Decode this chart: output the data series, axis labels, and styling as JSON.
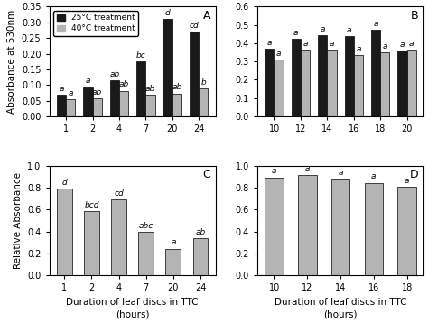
{
  "panel_A": {
    "categories": [
      1,
      2,
      4,
      7,
      20,
      24
    ],
    "black_values": [
      0.068,
      0.095,
      0.115,
      0.175,
      0.31,
      0.27
    ],
    "gray_values": [
      0.055,
      0.057,
      0.082,
      0.07,
      0.073,
      0.09
    ],
    "black_letters": [
      "a",
      "a",
      "ab",
      "bc",
      "d",
      "cd"
    ],
    "gray_letters": [
      "a",
      "ab",
      "ab",
      "ab",
      "ab",
      "b"
    ],
    "ylabel": "Absorbance at 530nm",
    "ylim": [
      0,
      0.35
    ],
    "yticks": [
      0.0,
      0.05,
      0.1,
      0.15,
      0.2,
      0.25,
      0.3,
      0.35
    ],
    "label": "A"
  },
  "panel_B": {
    "categories": [
      10,
      12,
      14,
      16,
      18,
      20
    ],
    "black_values": [
      0.37,
      0.425,
      0.445,
      0.44,
      0.475,
      0.36
    ],
    "gray_values": [
      0.31,
      0.365,
      0.365,
      0.335,
      0.35,
      0.365
    ],
    "black_letters": [
      "a",
      "a",
      "a",
      "a",
      "a",
      "a"
    ],
    "gray_letters": [
      "a",
      "a",
      "a",
      "a",
      "a",
      "a"
    ],
    "ylabel": "",
    "ylim": [
      0,
      0.6
    ],
    "yticks": [
      0.0,
      0.1,
      0.2,
      0.3,
      0.4,
      0.5,
      0.6
    ],
    "label": "B"
  },
  "panel_C": {
    "categories": [
      1,
      2,
      4,
      7,
      20,
      24
    ],
    "gray_values": [
      0.795,
      0.585,
      0.69,
      0.395,
      0.245,
      0.34
    ],
    "gray_letters": [
      "d",
      "bcd",
      "cd",
      "abc",
      "a",
      "ab"
    ],
    "ylabel": "Relative Absorbance",
    "xlabel": "Duration of leaf discs in TTC\n(hours)",
    "ylim": [
      0,
      1.0
    ],
    "yticks": [
      0.0,
      0.2,
      0.4,
      0.6,
      0.8,
      1.0
    ],
    "label": "C"
  },
  "panel_D": {
    "categories": [
      10,
      12,
      14,
      16,
      18
    ],
    "gray_values": [
      0.895,
      0.92,
      0.885,
      0.845,
      0.81
    ],
    "gray_letters": [
      "a",
      "a",
      "a",
      "a",
      "a"
    ],
    "ylabel": "",
    "xlabel": "Duration of leaf discs in TTC\n(hours)",
    "ylim": [
      0,
      1.0
    ],
    "yticks": [
      0.0,
      0.2,
      0.4,
      0.6,
      0.8,
      1.0
    ],
    "label": "D"
  },
  "legend": {
    "black_label": "25°C treatment",
    "gray_label": "40°C treatment"
  },
  "black_color": "#1a1a1a",
  "gray_color": "#b4b4b4",
  "bar_width": 0.35,
  "letter_fontsize": 6.5,
  "tick_fontsize": 7,
  "label_fontsize": 7.5
}
